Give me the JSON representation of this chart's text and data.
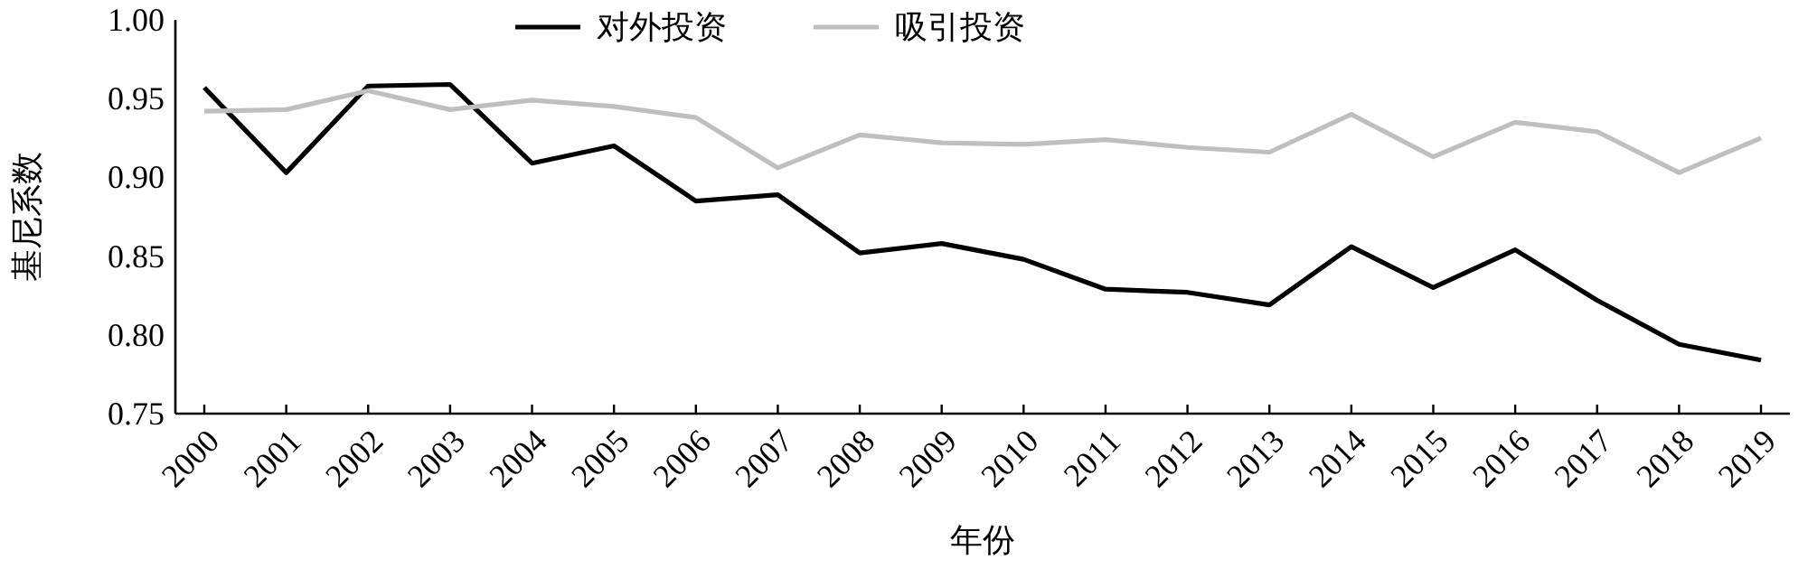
{
  "chart_data": {
    "type": "line",
    "xlabel": "年份",
    "ylabel": "基尼系数",
    "categories": [
      "2000",
      "2001",
      "2002",
      "2003",
      "2004",
      "2005",
      "2006",
      "2007",
      "2008",
      "2009",
      "2010",
      "2011",
      "2012",
      "2013",
      "2014",
      "2015",
      "2016",
      "2017",
      "2018",
      "2019"
    ],
    "series": [
      {
        "name": "对外投资",
        "color": "#000000",
        "values": [
          0.957,
          0.903,
          0.958,
          0.959,
          0.909,
          0.92,
          0.885,
          0.889,
          0.852,
          0.858,
          0.848,
          0.829,
          0.827,
          0.819,
          0.856,
          0.83,
          0.854,
          0.822,
          0.794,
          0.784
        ]
      },
      {
        "name": "吸引投资",
        "color": "#bfbfbf",
        "values": [
          0.942,
          0.943,
          0.955,
          0.943,
          0.949,
          0.945,
          0.938,
          0.906,
          0.927,
          0.922,
          0.921,
          0.924,
          0.919,
          0.916,
          0.94,
          0.913,
          0.935,
          0.929,
          0.903,
          0.925
        ]
      }
    ],
    "ylim": [
      0.75,
      1.0
    ],
    "yticks": [
      {
        "value": 0.75,
        "label": "0.75"
      },
      {
        "value": 0.8,
        "label": "0.80"
      },
      {
        "value": 0.85,
        "label": "0.85"
      },
      {
        "value": 0.9,
        "label": "0.90"
      },
      {
        "value": 0.95,
        "label": "0.95"
      },
      {
        "value": 1.0,
        "label": "1.00"
      }
    ],
    "legend": "top",
    "grid": false,
    "marker": "none",
    "line_style": "solid"
  }
}
